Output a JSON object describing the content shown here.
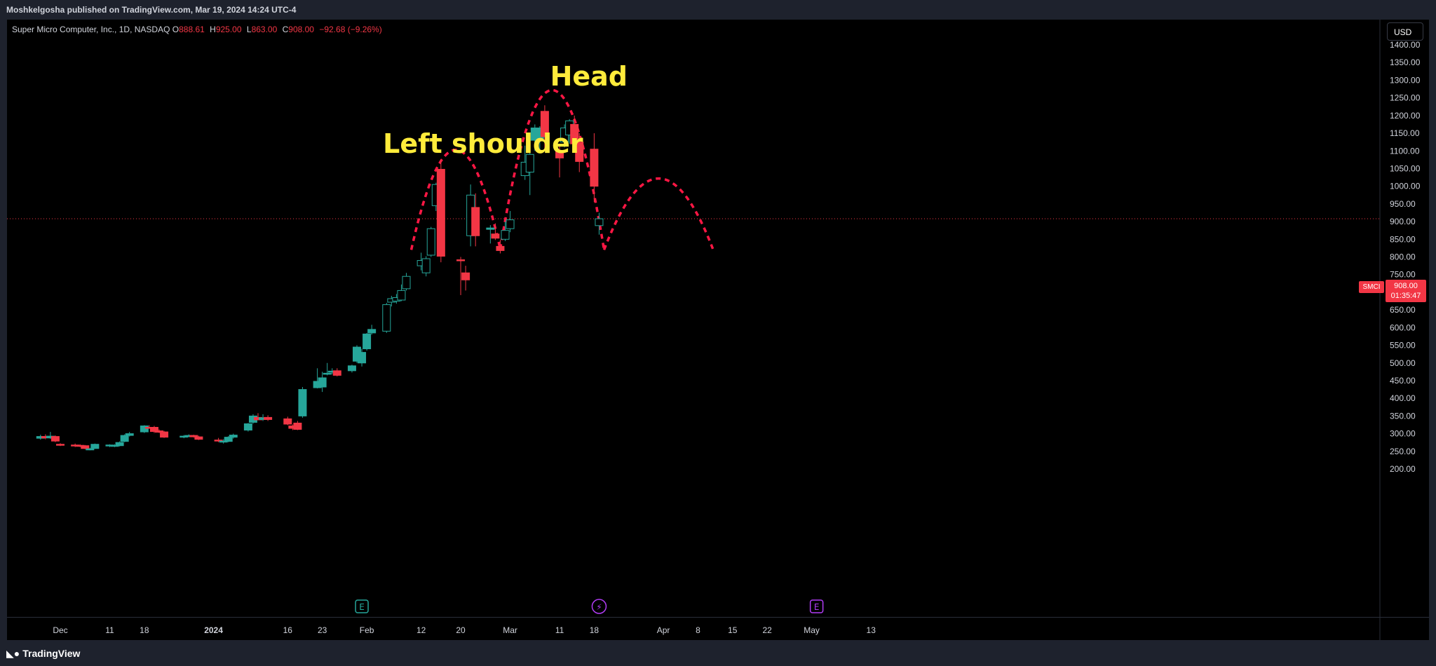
{
  "header": {
    "publisher": "Moshkelgosha published on TradingView.com, Mar 19, 2024 14:24 UTC-4"
  },
  "legend": {
    "symbol_desc": "Super Micro Computer, Inc., 1D, NASDAQ",
    "open_label": "O",
    "open": "888.61",
    "high_label": "H",
    "high": "925.00",
    "low_label": "L",
    "low": "863.00",
    "close_label": "C",
    "close": "908.00",
    "change": "−92.68 (−9.26%)"
  },
  "toolbar": {
    "currency": "USD"
  },
  "price_tag": {
    "symbol": "SMCI",
    "price": "908.00",
    "countdown": "01:35:47"
  },
  "annotations": {
    "left_shoulder": "Left shoulder",
    "head": "Head"
  },
  "event_markers": [
    {
      "icon": "earnings-icon",
      "glyph": "E",
      "date": "Jan 30"
    },
    {
      "icon": "dividend-split-icon",
      "glyph": "⚡",
      "date": "Mar 19"
    },
    {
      "icon": "earnings-icon",
      "glyph": "E",
      "date": "May 2"
    }
  ],
  "footer": {
    "brand": "TradingView"
  },
  "colors": {
    "up": "#26a69a",
    "down": "#f23645",
    "pattern_line": "#ff1744",
    "annotation": "#ffeb3b",
    "background": "#000000",
    "axis_text": "#d1d4dc",
    "earnings_marker": "#26a69a",
    "split_marker": "#b03cf5",
    "earnings_marker_2": "#b03cf5"
  },
  "chart_data": {
    "type": "candlestick",
    "title": "Super Micro Computer, Inc., 1D, NASDAQ",
    "y_axis": {
      "ylim": [
        180,
        1450
      ],
      "ticks": [
        "200.00",
        "250.00",
        "300.00",
        "350.00",
        "400.00",
        "450.00",
        "500.00",
        "550.00",
        "600.00",
        "650.00",
        "700.00",
        "750.00",
        "800.00",
        "850.00",
        "900.00",
        "950.00",
        "1000.00",
        "1050.00",
        "1100.00",
        "1150.00",
        "1200.00",
        "1250.00",
        "1300.00",
        "1350.00",
        "1400.00"
      ]
    },
    "x_axis": {
      "tick_labels": [
        {
          "label": "Dec",
          "date": "2023-12-01"
        },
        {
          "label": "11",
          "date": "2023-12-11"
        },
        {
          "label": "18",
          "date": "2023-12-18"
        },
        {
          "label": "2024",
          "date": "2024-01-01"
        },
        {
          "label": "16",
          "date": "2024-01-16"
        },
        {
          "label": "23",
          "date": "2024-01-23"
        },
        {
          "label": "Feb",
          "date": "2024-02-01"
        },
        {
          "label": "12",
          "date": "2024-02-12"
        },
        {
          "label": "20",
          "date": "2024-02-20"
        },
        {
          "label": "Mar",
          "date": "2024-03-01"
        },
        {
          "label": "11",
          "date": "2024-03-11"
        },
        {
          "label": "18",
          "date": "2024-03-18"
        },
        {
          "label": "Apr",
          "date": "2024-04-01"
        },
        {
          "label": "8",
          "date": "2024-04-08"
        },
        {
          "label": "15",
          "date": "2024-04-15"
        },
        {
          "label": "22",
          "date": "2024-04-22"
        },
        {
          "label": "May",
          "date": "2024-05-01"
        },
        {
          "label": "13",
          "date": "2024-05-13"
        }
      ]
    },
    "last_price": 908.0,
    "candles": [
      {
        "date": "2023-11-27",
        "o": 287,
        "h": 297,
        "l": 283,
        "c": 292
      },
      {
        "date": "2023-11-28",
        "o": 292,
        "h": 298,
        "l": 284,
        "c": 288
      },
      {
        "date": "2023-11-29",
        "o": 288,
        "h": 305,
        "l": 285,
        "c": 293
      },
      {
        "date": "2023-11-30",
        "o": 292,
        "h": 295,
        "l": 276,
        "c": 279
      },
      {
        "date": "2023-12-01",
        "o": 270,
        "h": 273,
        "l": 265,
        "c": 267
      },
      {
        "date": "2023-12-04",
        "o": 268,
        "h": 272,
        "l": 262,
        "c": 266
      },
      {
        "date": "2023-12-05",
        "o": 267,
        "h": 270,
        "l": 262,
        "c": 265
      },
      {
        "date": "2023-12-06",
        "o": 266,
        "h": 268,
        "l": 256,
        "c": 258
      },
      {
        "date": "2023-12-07",
        "o": 256,
        "h": 260,
        "l": 253,
        "c": 257
      },
      {
        "date": "2023-12-08",
        "o": 258,
        "h": 272,
        "l": 257,
        "c": 270
      },
      {
        "date": "2023-12-11",
        "o": 266,
        "h": 270,
        "l": 262,
        "c": 268
      },
      {
        "date": "2023-12-12",
        "o": 264,
        "h": 270,
        "l": 262,
        "c": 267
      },
      {
        "date": "2023-12-13",
        "o": 266,
        "h": 278,
        "l": 264,
        "c": 275
      },
      {
        "date": "2023-12-14",
        "o": 278,
        "h": 298,
        "l": 276,
        "c": 295
      },
      {
        "date": "2023-12-15",
        "o": 295,
        "h": 305,
        "l": 292,
        "c": 300
      },
      {
        "date": "2023-12-18",
        "o": 305,
        "h": 324,
        "l": 302,
        "c": 322
      },
      {
        "date": "2023-12-19",
        "o": 318,
        "h": 324,
        "l": 314,
        "c": 317
      },
      {
        "date": "2023-12-20",
        "o": 318,
        "h": 322,
        "l": 302,
        "c": 306
      },
      {
        "date": "2023-12-21",
        "o": 308,
        "h": 312,
        "l": 302,
        "c": 304
      },
      {
        "date": "2023-12-22",
        "o": 305,
        "h": 308,
        "l": 288,
        "c": 290
      },
      {
        "date": "2023-12-26",
        "o": 290,
        "h": 296,
        "l": 287,
        "c": 293
      },
      {
        "date": "2023-12-27",
        "o": 293,
        "h": 298,
        "l": 290,
        "c": 295
      },
      {
        "date": "2023-12-28",
        "o": 295,
        "h": 297,
        "l": 289,
        "c": 291
      },
      {
        "date": "2023-12-29",
        "o": 291,
        "h": 294,
        "l": 282,
        "c": 284
      },
      {
        "date": "2024-01-02",
        "o": 282,
        "h": 288,
        "l": 276,
        "c": 279
      },
      {
        "date": "2024-01-03",
        "o": 276,
        "h": 284,
        "l": 272,
        "c": 279
      },
      {
        "date": "2024-01-04",
        "o": 278,
        "h": 293,
        "l": 276,
        "c": 290
      },
      {
        "date": "2024-01-05",
        "o": 290,
        "h": 300,
        "l": 286,
        "c": 296
      },
      {
        "date": "2024-01-08",
        "o": 310,
        "h": 330,
        "l": 306,
        "c": 328
      },
      {
        "date": "2024-01-09",
        "o": 332,
        "h": 355,
        "l": 328,
        "c": 350
      },
      {
        "date": "2024-01-10",
        "o": 346,
        "h": 358,
        "l": 338,
        "c": 339
      },
      {
        "date": "2024-01-11",
        "o": 340,
        "h": 355,
        "l": 336,
        "c": 345
      },
      {
        "date": "2024-01-12",
        "o": 346,
        "h": 352,
        "l": 336,
        "c": 340
      },
      {
        "date": "2024-01-16",
        "o": 342,
        "h": 348,
        "l": 324,
        "c": 327
      },
      {
        "date": "2024-01-17",
        "o": 322,
        "h": 326,
        "l": 310,
        "c": 315
      },
      {
        "date": "2024-01-18",
        "o": 330,
        "h": 336,
        "l": 310,
        "c": 312
      },
      {
        "date": "2024-01-19",
        "o": 350,
        "h": 432,
        "l": 345,
        "c": 425
      },
      {
        "date": "2024-01-22",
        "o": 430,
        "h": 485,
        "l": 428,
        "c": 448
      },
      {
        "date": "2024-01-23",
        "o": 432,
        "h": 475,
        "l": 418,
        "c": 458
      },
      {
        "date": "2024-01-24",
        "o": 470,
        "h": 500,
        "l": 465,
        "c": 471
      },
      {
        "date": "2024-01-25",
        "o": 475,
        "h": 485,
        "l": 468,
        "c": 477
      },
      {
        "date": "2024-01-26",
        "o": 478,
        "h": 485,
        "l": 462,
        "c": 465
      },
      {
        "date": "2024-01-29",
        "o": 478,
        "h": 495,
        "l": 473,
        "c": 492
      },
      {
        "date": "2024-01-30",
        "o": 505,
        "h": 550,
        "l": 500,
        "c": 545
      },
      {
        "date": "2024-01-31",
        "o": 500,
        "h": 540,
        "l": 490,
        "c": 530
      },
      {
        "date": "2024-02-01",
        "o": 540,
        "h": 585,
        "l": 535,
        "c": 582
      },
      {
        "date": "2024-02-02",
        "o": 585,
        "h": 608,
        "l": 580,
        "c": 595
      },
      {
        "date": "2024-02-05",
        "o": 590,
        "h": 670,
        "l": 585,
        "c": 665
      },
      {
        "date": "2024-02-06",
        "o": 672,
        "h": 690,
        "l": 660,
        "c": 682
      },
      {
        "date": "2024-02-07",
        "o": 675,
        "h": 695,
        "l": 668,
        "c": 685
      },
      {
        "date": "2024-02-08",
        "o": 678,
        "h": 722,
        "l": 675,
        "c": 705
      },
      {
        "date": "2024-02-09",
        "o": 710,
        "h": 755,
        "l": 705,
        "c": 745
      },
      {
        "date": "2024-02-12",
        "o": 775,
        "h": 812,
        "l": 762,
        "c": 790
      },
      {
        "date": "2024-02-13",
        "o": 755,
        "h": 802,
        "l": 745,
        "c": 795
      },
      {
        "date": "2024-02-14",
        "o": 805,
        "h": 885,
        "l": 800,
        "c": 880
      },
      {
        "date": "2024-02-15",
        "o": 945,
        "h": 1010,
        "l": 930,
        "c": 1005
      },
      {
        "date": "2024-02-16",
        "o": 1048,
        "h": 1077,
        "l": 785,
        "c": 802
      },
      {
        "date": "2024-02-20",
        "o": 792,
        "h": 800,
        "l": 692,
        "c": 790
      },
      {
        "date": "2024-02-21",
        "o": 755,
        "h": 775,
        "l": 705,
        "c": 735
      },
      {
        "date": "2024-02-22",
        "o": 860,
        "h": 1005,
        "l": 830,
        "c": 975
      },
      {
        "date": "2024-02-23",
        "o": 940,
        "h": 980,
        "l": 830,
        "c": 860
      },
      {
        "date": "2024-02-26",
        "o": 878,
        "h": 890,
        "l": 838,
        "c": 882
      },
      {
        "date": "2024-02-27",
        "o": 865,
        "h": 895,
        "l": 848,
        "c": 853
      },
      {
        "date": "2024-02-28",
        "o": 830,
        "h": 848,
        "l": 810,
        "c": 818
      },
      {
        "date": "2024-02-29",
        "o": 850,
        "h": 900,
        "l": 845,
        "c": 875
      },
      {
        "date": "2024-03-01",
        "o": 880,
        "h": 930,
        "l": 870,
        "c": 905
      },
      {
        "date": "2024-03-04",
        "o": 1030,
        "h": 1115,
        "l": 1018,
        "c": 1068
      },
      {
        "date": "2024-03-05",
        "o": 1040,
        "h": 1100,
        "l": 975,
        "c": 1090
      },
      {
        "date": "2024-03-06",
        "o": 1130,
        "h": 1175,
        "l": 1100,
        "c": 1165
      },
      {
        "date": "2024-03-07",
        "o": 1135,
        "h": 1170,
        "l": 1095,
        "c": 1165
      },
      {
        "date": "2024-03-08",
        "o": 1212,
        "h": 1229,
        "l": 1100,
        "c": 1140
      },
      {
        "date": "2024-03-11",
        "o": 1100,
        "h": 1115,
        "l": 1025,
        "c": 1080
      },
      {
        "date": "2024-03-12",
        "o": 1125,
        "h": 1175,
        "l": 1110,
        "c": 1165
      },
      {
        "date": "2024-03-13",
        "o": 1145,
        "h": 1190,
        "l": 1120,
        "c": 1185
      },
      {
        "date": "2024-03-14",
        "o": 1175,
        "h": 1200,
        "l": 1105,
        "c": 1120
      },
      {
        "date": "2024-03-15",
        "o": 1125,
        "h": 1150,
        "l": 1040,
        "c": 1070
      },
      {
        "date": "2024-03-18",
        "o": 1105,
        "h": 1150,
        "l": 955,
        "c": 1000
      },
      {
        "date": "2024-03-19",
        "o": 888.61,
        "h": 925,
        "l": 863,
        "c": 908
      }
    ]
  }
}
